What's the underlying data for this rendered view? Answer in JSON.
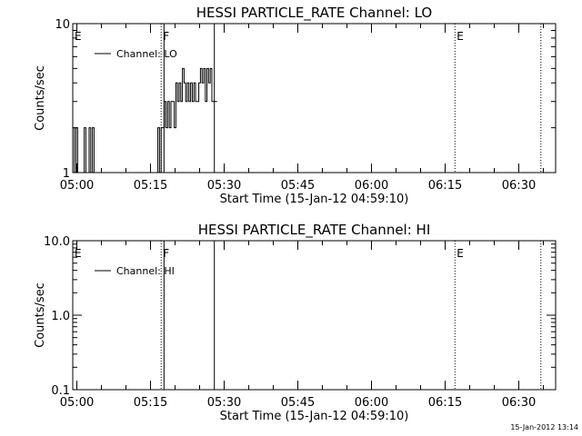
{
  "footer_date": "15-Jan-2012 13:14",
  "chart_data": [
    {
      "type": "line",
      "title": "HESSI PARTICLE_RATE Channel: LO",
      "xlabel": "Start Time (15-Jan-12 04:59:10)",
      "ylabel": "Counts/sec",
      "y_scale": "log",
      "ylim": [
        1,
        10
      ],
      "y_ticks": [
        {
          "value": 1,
          "label": "1"
        },
        {
          "value": 10,
          "label": "10"
        }
      ],
      "xlim": [
        "04:59:10",
        "06:37:30"
      ],
      "x_ticks": [
        "05:00",
        "05:15",
        "05:30",
        "05:45",
        "06:00",
        "06:15",
        "06:30"
      ],
      "legend": {
        "placement": "top-left",
        "entries": [
          "Channel: LO"
        ]
      },
      "markers": [
        {
          "time": "04:59:10",
          "label": "E",
          "style": "solid"
        },
        {
          "time": "05:17:10",
          "label": "F",
          "style": "dotted"
        },
        {
          "time": "05:17:45",
          "label": "",
          "style": "solid"
        },
        {
          "time": "05:28:00",
          "label": "",
          "style": "solid"
        },
        {
          "time": "06:17:00",
          "label": "E",
          "style": "dotted"
        },
        {
          "time": "06:34:30",
          "label": "",
          "style": "dotted"
        }
      ],
      "series": [
        {
          "name": "Channel: LO",
          "x": [
            "04:59:10",
            "04:59:30",
            "04:59:50",
            "05:00:10",
            "05:00:30",
            "05:00:50",
            "05:01:10",
            "05:01:30",
            "05:01:50",
            "05:02:10",
            "05:02:30",
            "05:02:50",
            "05:03:10",
            "05:03:30",
            "05:03:50",
            "05:04:10",
            "05:04:30",
            "05:16:10",
            "05:16:30",
            "05:16:50",
            "05:17:10",
            "05:17:30",
            "05:17:50",
            "05:18:10",
            "05:18:30",
            "05:18:50",
            "05:19:10",
            "05:19:30",
            "05:19:50",
            "05:20:10",
            "05:20:30",
            "05:20:50",
            "05:21:10",
            "05:21:30",
            "05:21:50",
            "05:22:10",
            "05:22:30",
            "05:22:50",
            "05:23:10",
            "05:23:30",
            "05:23:50",
            "05:24:10",
            "05:24:30",
            "05:24:50",
            "05:25:10",
            "05:25:30",
            "05:25:50",
            "05:26:10",
            "05:26:30",
            "05:26:50",
            "05:27:10",
            "05:27:30",
            "05:27:50"
          ],
          "y": [
            2,
            1,
            2,
            1,
            1,
            1,
            1,
            2,
            1,
            1,
            2,
            1,
            2,
            1,
            1,
            1,
            1,
            1,
            2,
            1,
            2,
            2,
            3,
            2,
            3,
            2,
            3,
            3,
            2,
            4,
            3,
            4,
            3,
            5,
            4,
            3,
            4,
            3,
            4,
            3,
            4,
            3,
            3,
            4,
            5,
            4,
            5,
            3,
            5,
            4,
            5,
            3,
            3
          ]
        }
      ]
    },
    {
      "type": "line",
      "title": "HESSI PARTICLE_RATE Channel: HI",
      "xlabel": "Start Time (15-Jan-12 04:59:10)",
      "ylabel": "Counts/sec",
      "y_scale": "log",
      "ylim": [
        0.1,
        10
      ],
      "y_ticks": [
        {
          "value": 0.1,
          "label": "0.1"
        },
        {
          "value": 1,
          "label": "1.0"
        },
        {
          "value": 10,
          "label": "10.0"
        }
      ],
      "xlim": [
        "04:59:10",
        "06:37:30"
      ],
      "x_ticks": [
        "05:00",
        "05:15",
        "05:30",
        "05:45",
        "06:00",
        "06:15",
        "06:30"
      ],
      "legend": {
        "placement": "top-left",
        "entries": [
          "Channel: HI"
        ]
      },
      "markers": [
        {
          "time": "04:59:10",
          "label": "E",
          "style": "solid"
        },
        {
          "time": "05:17:10",
          "label": "F",
          "style": "dotted"
        },
        {
          "time": "05:17:45",
          "label": "",
          "style": "solid"
        },
        {
          "time": "05:28:00",
          "label": "",
          "style": "solid"
        },
        {
          "time": "06:17:00",
          "label": "E",
          "style": "dotted"
        },
        {
          "time": "06:34:30",
          "label": "",
          "style": "dotted"
        }
      ],
      "series": [
        {
          "name": "Channel: HI",
          "x": [],
          "y": []
        }
      ]
    }
  ]
}
